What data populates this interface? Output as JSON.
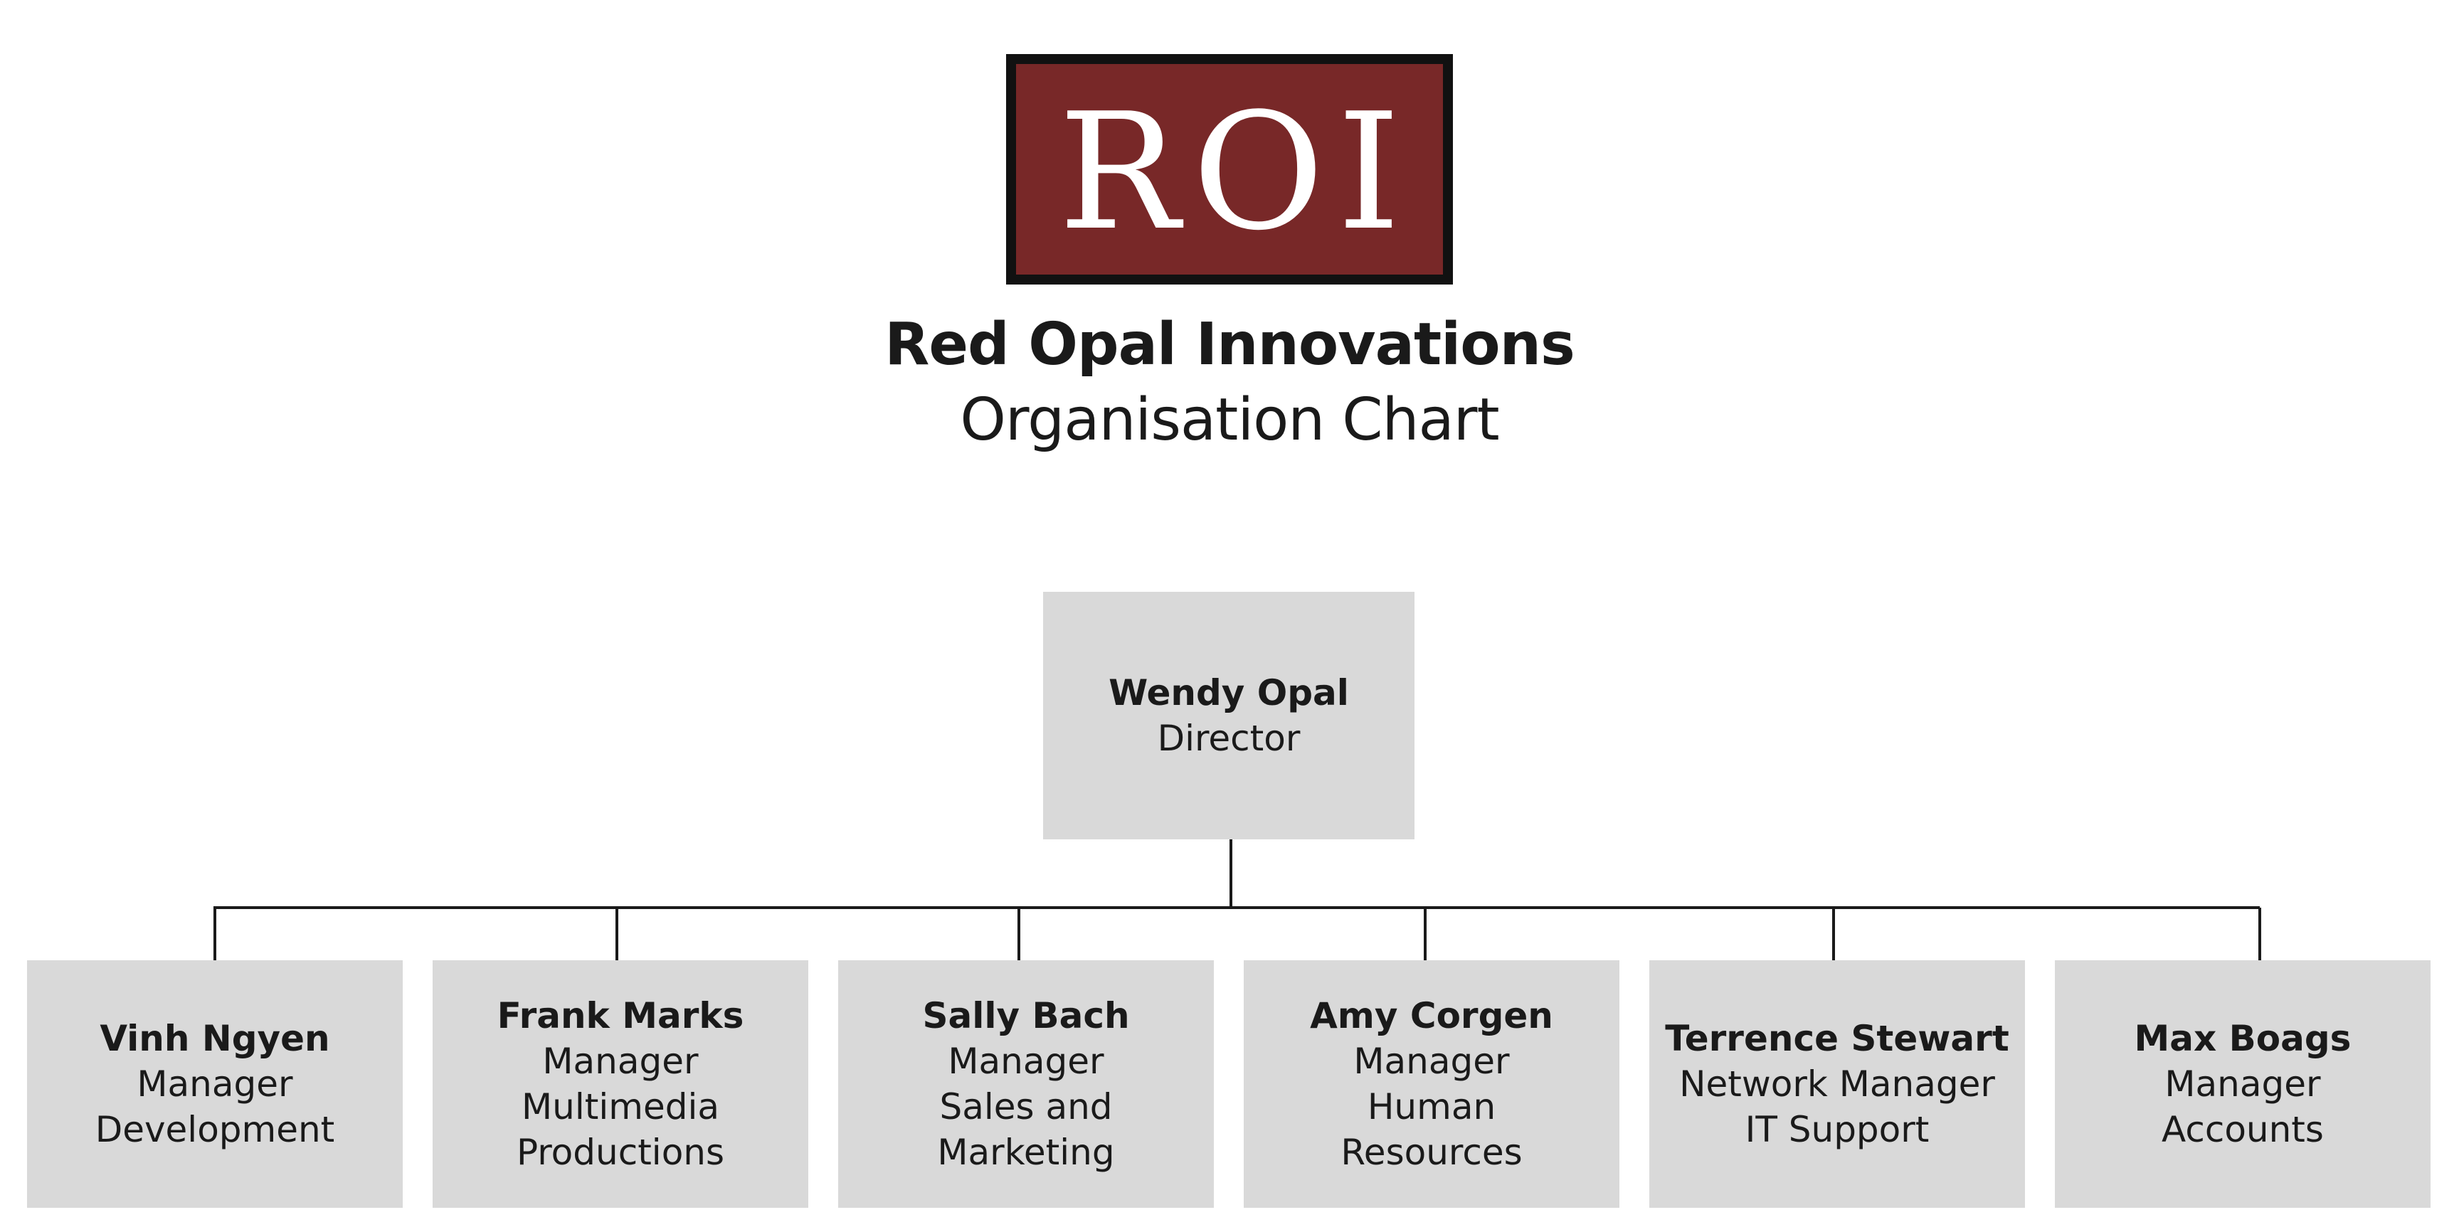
{
  "logo": {
    "text": "ROI",
    "background_color": "#782828",
    "border_color": "#111111"
  },
  "header": {
    "title": "Red Opal Innovations",
    "subtitle": "Organisation Chart"
  },
  "colors": {
    "node_fill": "#d9d9d9",
    "connector": "#1a1a1a"
  },
  "org": {
    "director": {
      "name": "Wendy Opal",
      "lines": [
        "Director"
      ]
    },
    "reports": [
      {
        "name": "Vinh Ngyen",
        "lines": [
          "Manager",
          "Development"
        ]
      },
      {
        "name": "Frank Marks",
        "lines": [
          "Manager",
          "Multimedia",
          "Productions"
        ]
      },
      {
        "name": "Sally Bach",
        "lines": [
          "Manager",
          "Sales and",
          "Marketing"
        ]
      },
      {
        "name": "Amy Corgen",
        "lines": [
          "Manager",
          "Human",
          "Resources"
        ]
      },
      {
        "name": "Terrence Stewart",
        "lines": [
          "Network Manager",
          "IT Support"
        ]
      },
      {
        "name": "Max Boags",
        "lines": [
          "Manager",
          "Accounts"
        ]
      }
    ]
  }
}
